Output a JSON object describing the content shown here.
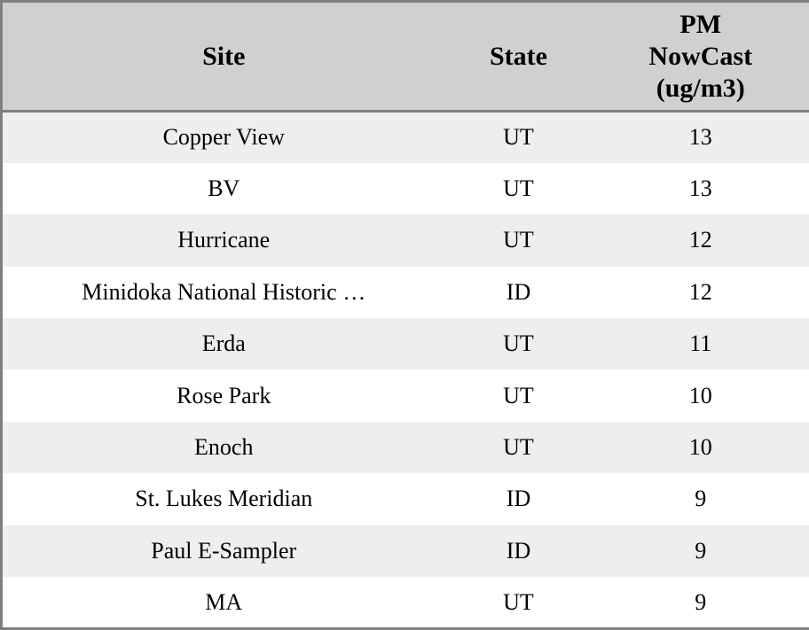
{
  "table": {
    "header": {
      "site": "Site",
      "state": "State",
      "pm": "PM\nNowCast\n(ug/m3)"
    },
    "rows": [
      {
        "site": "Copper View",
        "state": "UT",
        "pm": "13"
      },
      {
        "site": "BV",
        "state": "UT",
        "pm": "13"
      },
      {
        "site": "Hurricane",
        "state": "UT",
        "pm": "12"
      },
      {
        "site": "Minidoka National Historic …",
        "state": "ID",
        "pm": "12"
      },
      {
        "site": "Erda",
        "state": "UT",
        "pm": "11"
      },
      {
        "site": "Rose Park",
        "state": "UT",
        "pm": "10"
      },
      {
        "site": "Enoch",
        "state": "UT",
        "pm": "10"
      },
      {
        "site": "St. Lukes Meridian",
        "state": "ID",
        "pm": "9"
      },
      {
        "site": "Paul E-Sampler",
        "state": "ID",
        "pm": "9"
      },
      {
        "site": "MA",
        "state": "UT",
        "pm": "9"
      }
    ],
    "colors": {
      "header_bg": "#d0d0d0",
      "row_stripe_bg": "#eeeeee",
      "row_bg": "#ffffff",
      "border": "#7f7f7f",
      "text": "#000000"
    }
  }
}
